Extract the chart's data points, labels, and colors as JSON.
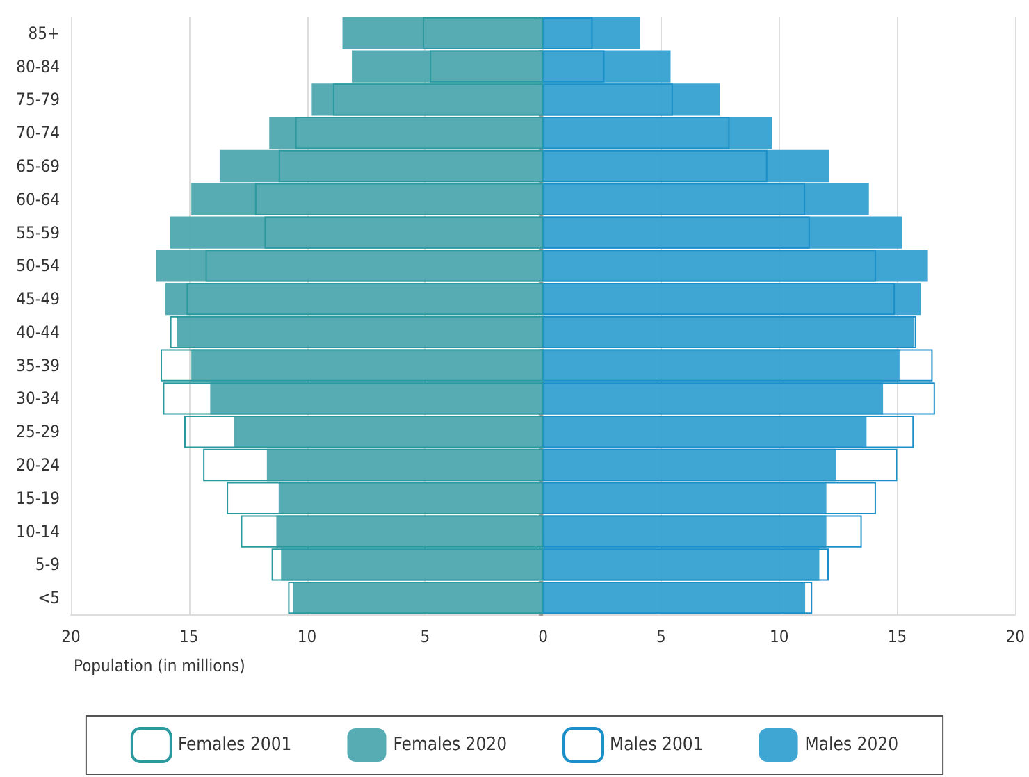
{
  "chart_data": {
    "type": "bar",
    "orientation": "horizontal",
    "xlabel": "Population (in millions)",
    "categories": [
      "85+",
      "80-84",
      "75-79",
      "70-74",
      "65-69",
      "60-64",
      "55-59",
      "50-54",
      "45-49",
      "40-44",
      "35-39",
      "30-34",
      "25-29",
      "20-24",
      "15-19",
      "10-14",
      "5-9",
      "<5"
    ],
    "series": [
      {
        "name": "Females 2001",
        "color": "#2a9a9e",
        "values": [
          -5.1,
          -4.8,
          -8.9,
          -10.5,
          -11.2,
          -12.2,
          -11.8,
          -14.3,
          -15.1,
          -15.8,
          -16.2,
          -16.1,
          -15.2,
          -14.4,
          -13.4,
          -12.8,
          -11.5,
          -10.8
        ]
      },
      {
        "name": "Females 2020",
        "color": "#4ea8b0",
        "values": [
          -8.5,
          -8.1,
          -9.8,
          -11.6,
          -13.7,
          -14.9,
          -15.8,
          -16.4,
          -16.0,
          -15.5,
          -14.9,
          -14.1,
          -13.1,
          -11.7,
          -11.2,
          -11.3,
          -11.1,
          -10.6
        ]
      },
      {
        "name": "Males 2001",
        "color": "#1a8fc8",
        "values": [
          2.1,
          2.6,
          5.5,
          7.9,
          9.5,
          11.1,
          11.3,
          14.1,
          14.9,
          15.8,
          16.5,
          16.6,
          15.7,
          15.0,
          14.1,
          13.5,
          12.1,
          11.4
        ]
      },
      {
        "name": "Males 2020",
        "color": "#35a0d0",
        "values": [
          4.1,
          5.4,
          7.5,
          9.7,
          12.1,
          13.8,
          15.2,
          16.3,
          16.0,
          15.7,
          15.1,
          14.4,
          13.7,
          12.4,
          12.0,
          12.0,
          11.7,
          11.1
        ]
      }
    ],
    "xlim": [
      -20,
      20
    ],
    "xticks": [
      {
        "value": -20,
        "label": "20"
      },
      {
        "value": -15,
        "label": "15"
      },
      {
        "value": -10,
        "label": "10"
      },
      {
        "value": -5,
        "label": "5"
      },
      0,
      5,
      10,
      15,
      20
    ],
    "grid": "x",
    "legend": "bottom"
  }
}
